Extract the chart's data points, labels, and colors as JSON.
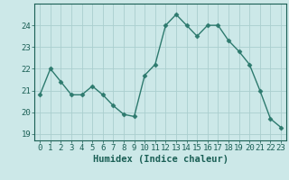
{
  "x": [
    0,
    1,
    2,
    3,
    4,
    5,
    6,
    7,
    8,
    9,
    10,
    11,
    12,
    13,
    14,
    15,
    16,
    17,
    18,
    19,
    20,
    21,
    22,
    23
  ],
  "y": [
    20.8,
    22.0,
    21.4,
    20.8,
    20.8,
    21.2,
    20.8,
    20.3,
    19.9,
    19.8,
    21.7,
    22.2,
    24.0,
    24.5,
    24.0,
    23.5,
    24.0,
    24.0,
    23.3,
    22.8,
    22.2,
    21.0,
    19.7,
    19.3
  ],
  "line_color": "#2d7a6e",
  "marker": "D",
  "marker_size": 2.5,
  "bg_color": "#cce8e8",
  "grid_color": "#aacece",
  "xlabel": "Humidex (Indice chaleur)",
  "xlim": [
    -0.5,
    23.5
  ],
  "ylim": [
    18.7,
    25.0
  ],
  "yticks": [
    19,
    20,
    21,
    22,
    23,
    24
  ],
  "xticks": [
    0,
    1,
    2,
    3,
    4,
    5,
    6,
    7,
    8,
    9,
    10,
    11,
    12,
    13,
    14,
    15,
    16,
    17,
    18,
    19,
    20,
    21,
    22,
    23
  ],
  "tick_fontsize": 6.5,
  "label_fontsize": 7.5,
  "axis_color": "#1a5f55",
  "spine_color": "#1a5f55"
}
